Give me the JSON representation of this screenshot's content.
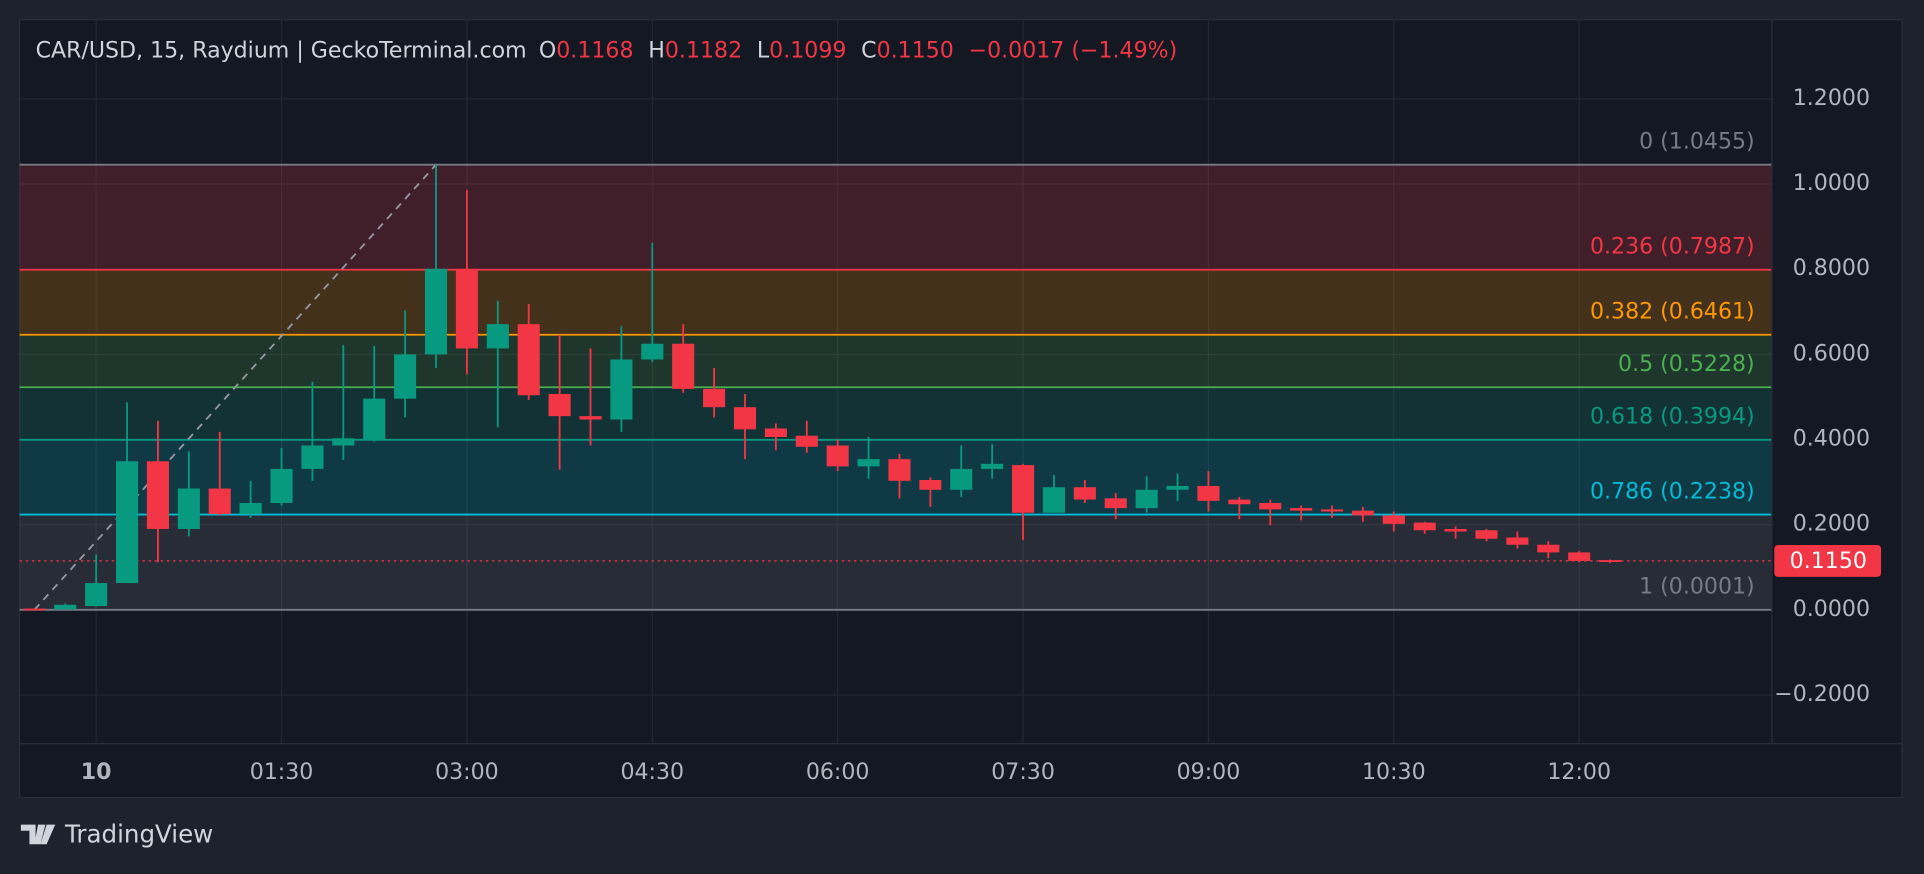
{
  "chart_data": {
    "type": "candlestick",
    "title": "CAR/USD, 15, Raydium | GeckoTerminal.com",
    "ohlc_legend": [
      {
        "key": "O",
        "value": "0.1168"
      },
      {
        "key": "H",
        "value": "0.1182"
      },
      {
        "key": "L",
        "value": "0.1099"
      },
      {
        "key": "C",
        "value": "0.1150"
      }
    ],
    "change": "−0.0017 (−1.49%)",
    "categories": [
      null,
      null,
      "10",
      null,
      null,
      null,
      null,
      null,
      "01:30",
      null,
      null,
      null,
      null,
      null,
      "03:00",
      null,
      null,
      null,
      null,
      null,
      "04:30",
      null,
      null,
      null,
      null,
      null,
      "06:00",
      null,
      null,
      null,
      null,
      null,
      "07:30",
      null,
      null,
      null,
      null,
      null,
      "09:00",
      null,
      null,
      null,
      null,
      null,
      "10:30",
      null,
      null,
      null,
      null,
      null,
      "12:00",
      null
    ],
    "open": [
      0.003,
      0.001,
      0.009,
      0.063,
      0.349,
      0.19,
      0.285,
      0.225,
      0.251,
      0.331,
      0.386,
      0.4,
      0.496,
      0.6,
      0.801,
      0.614,
      0.671,
      0.507,
      0.455,
      0.447,
      0.588,
      0.625,
      0.519,
      0.476,
      0.426,
      0.409,
      0.386,
      0.337,
      0.354,
      0.305,
      0.282,
      0.331,
      0.34,
      0.228,
      0.288,
      0.262,
      0.239,
      0.282,
      0.291,
      0.259,
      0.251,
      0.239,
      0.236,
      0.233,
      0.222,
      0.205,
      0.19,
      0.187,
      0.17,
      0.153,
      0.135,
      0.1168
    ],
    "high": [
      0.004,
      0.015,
      0.13,
      0.487,
      0.444,
      0.372,
      0.418,
      0.303,
      0.38,
      0.536,
      0.622,
      0.62,
      0.703,
      1.0455,
      0.986,
      0.726,
      0.718,
      0.646,
      0.614,
      0.666,
      0.862,
      0.671,
      0.568,
      0.507,
      0.438,
      0.444,
      0.4,
      0.406,
      0.366,
      0.311,
      0.386,
      0.389,
      0.343,
      0.317,
      0.305,
      0.274,
      0.314,
      0.32,
      0.326,
      0.265,
      0.259,
      0.245,
      0.245,
      0.242,
      0.231,
      0.207,
      0.196,
      0.19,
      0.184,
      0.161,
      0.138,
      0.1182
    ],
    "low": [
      0.0001,
      0.001,
      0.008,
      0.063,
      0.112,
      0.173,
      0.222,
      0.216,
      0.245,
      0.303,
      0.352,
      0.395,
      0.452,
      0.568,
      0.553,
      0.429,
      0.493,
      0.329,
      0.386,
      0.418,
      0.582,
      0.51,
      0.452,
      0.354,
      0.375,
      0.369,
      0.326,
      0.308,
      0.262,
      0.242,
      0.265,
      0.308,
      0.164,
      0.228,
      0.251,
      0.213,
      0.228,
      0.256,
      0.231,
      0.213,
      0.199,
      0.21,
      0.216,
      0.207,
      0.184,
      0.179,
      0.167,
      0.161,
      0.144,
      0.121,
      0.112,
      0.1099
    ],
    "close": [
      0.001,
      0.012,
      0.063,
      0.349,
      0.19,
      0.285,
      0.225,
      0.251,
      0.331,
      0.386,
      0.403,
      0.496,
      0.6,
      0.801,
      0.614,
      0.671,
      0.504,
      0.455,
      0.447,
      0.588,
      0.625,
      0.519,
      0.476,
      0.424,
      0.406,
      0.383,
      0.337,
      0.354,
      0.303,
      0.282,
      0.331,
      0.343,
      0.228,
      0.288,
      0.259,
      0.239,
      0.282,
      0.291,
      0.256,
      0.248,
      0.236,
      0.233,
      0.231,
      0.222,
      0.202,
      0.187,
      0.184,
      0.167,
      0.153,
      0.135,
      0.115,
      0.115
    ],
    "up_color": "#089981",
    "down_color": "#f23645",
    "ylim": [
      -0.314,
      1.386
    ],
    "yticks": [
      {
        "value": -0.2,
        "label": "−0.2000"
      },
      {
        "value": 0,
        "label": "0.0000"
      },
      {
        "value": 0.2,
        "label": "0.2000"
      },
      {
        "value": 0.4,
        "label": "0.4000"
      },
      {
        "value": 0.6,
        "label": "0.6000"
      },
      {
        "value": 0.8,
        "label": "0.8000"
      },
      {
        "value": 1,
        "label": "1.0000"
      },
      {
        "value": 1.2,
        "label": "1.2000"
      }
    ],
    "grid": true,
    "fib_levels": [
      {
        "label": "0 (1.0455)",
        "value": 1.0455,
        "color": "#787b86"
      },
      {
        "label": "0.236 (0.7987)",
        "value": 0.7987,
        "color": "#f23645"
      },
      {
        "label": "0.382 (0.6461)",
        "value": 0.6461,
        "color": "#ff9800"
      },
      {
        "label": "0.5 (0.5228)",
        "value": 0.5228,
        "color": "#4caf50"
      },
      {
        "label": "0.618 (0.3994)",
        "value": 0.3994,
        "color": "#089981"
      },
      {
        "label": "0.786 (0.2238)",
        "value": 0.2238,
        "color": "#00bcd4"
      },
      {
        "label": "1 (0.0001)",
        "value": 0.0001,
        "color": "#787b86"
      }
    ],
    "last_price": {
      "value": 0.115,
      "label": "0.1150"
    },
    "brand": "TradingView"
  }
}
